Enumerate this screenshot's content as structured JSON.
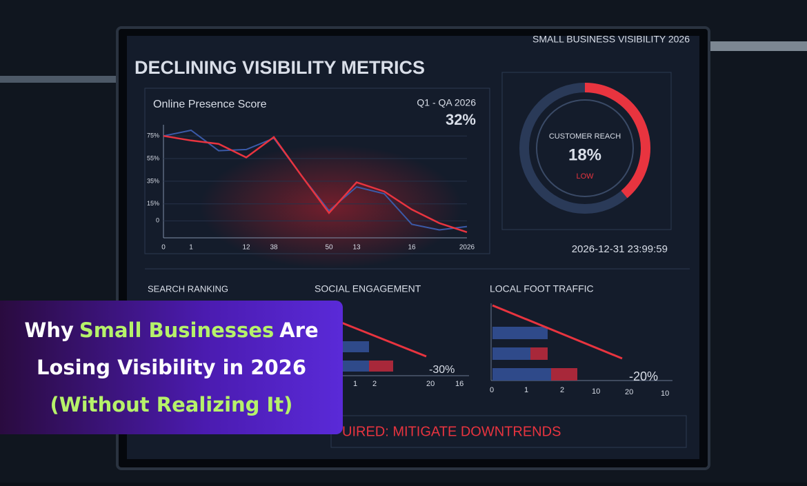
{
  "dashboard": {
    "title": "DECLINING VISIBILITY METRICS",
    "brand": "SMALL BUSINESS VISIBILITY 2026",
    "period": "Q1 - QA 2026",
    "period_value": "32%",
    "gauge": {
      "label": "CUSTOMER REACH",
      "value": "18%",
      "status": "LOW"
    },
    "timestamp": "2026-12-31 23:99:59",
    "panels": [
      {
        "title": "SEARCH RANKING"
      },
      {
        "title": "SOCIAL ENGAGEMENT",
        "change": "-30%",
        "ticks": [
          "1",
          "2",
          "20",
          "16"
        ]
      },
      {
        "title": "LOCAL FOOT TRAFFIC",
        "change": "-20%",
        "ticks": [
          "0",
          "1",
          "2",
          "10",
          "20",
          "10"
        ]
      }
    ],
    "alert": "UIRED: MITIGATE DOWNTRENDS"
  },
  "overlay": {
    "word1": "Why",
    "highlight": "Small Businesses",
    "word2": "Are",
    "line2": "Losing Visibility in 2026",
    "line3": "(Without Realizing It)"
  },
  "chart_data": {
    "type": "line",
    "title": "Online Presence Score",
    "categories": [
      "0",
      "1",
      null,
      "12",
      "38",
      null,
      "50",
      "13",
      null,
      "16",
      null,
      "2026"
    ],
    "series": [
      {
        "color": "#3b5aa8",
        "values": [
          75,
          80,
          62,
          63,
          73,
          40,
          9,
          30,
          24,
          -3,
          -8,
          -5
        ]
      },
      {
        "color": "#e8343f",
        "values": [
          75,
          71,
          68,
          56,
          74,
          40,
          7,
          34,
          26,
          10,
          -2,
          -10
        ]
      }
    ],
    "ylim": [
      -15,
      80
    ],
    "yticks": [
      {
        "value": 75,
        "label": "75%"
      },
      {
        "value": 55,
        "label": "55%"
      },
      {
        "value": 35,
        "label": "35%"
      },
      {
        "value": 15,
        "label": "15%"
      },
      0
    ],
    "grid": true
  }
}
